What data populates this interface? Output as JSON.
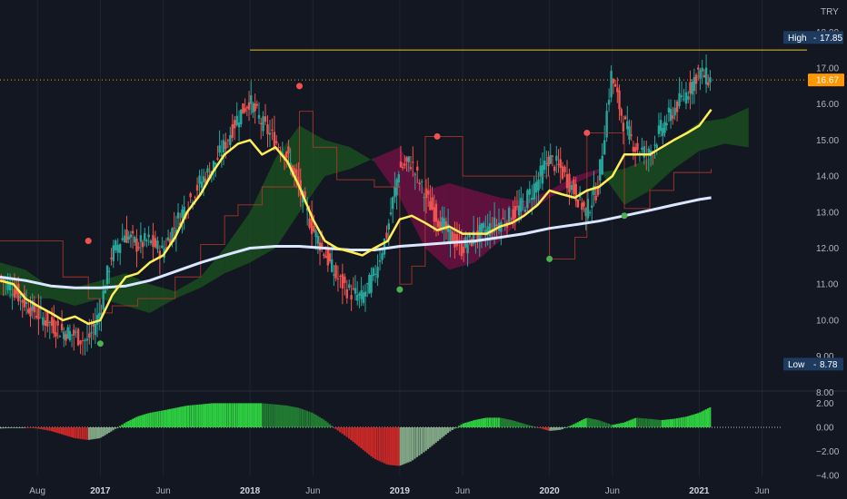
{
  "chart_data": {
    "type": "line",
    "currency": "TRY",
    "price_axis": {
      "ticks": [
        "18.00",
        "17.00",
        "16.00",
        "15.00",
        "14.00",
        "13.00",
        "12.00",
        "11.00",
        "10.00",
        "9.00",
        "8.00"
      ],
      "tick_values": [
        18,
        17,
        16,
        15,
        14,
        13,
        12,
        11,
        10,
        9,
        8
      ]
    },
    "oscillator_axis": {
      "ticks": [
        "2.00",
        "0.00",
        "−2.00",
        "−4.00"
      ],
      "tick_values": [
        2,
        0,
        -2,
        -4
      ]
    },
    "x_axis": {
      "labels": [
        {
          "text": "Aug",
          "t": 2016.58,
          "bold": false
        },
        {
          "text": "2017",
          "t": 2017.0,
          "bold": true
        },
        {
          "text": "Jun",
          "t": 2017.42,
          "bold": false
        },
        {
          "text": "2018",
          "t": 2018.0,
          "bold": true
        },
        {
          "text": "Jun",
          "t": 2018.42,
          "bold": false
        },
        {
          "text": "2019",
          "t": 2019.0,
          "bold": true
        },
        {
          "text": "Jun",
          "t": 2019.42,
          "bold": false
        },
        {
          "text": "2020",
          "t": 2020.0,
          "bold": true
        },
        {
          "text": "Jun",
          "t": 2020.42,
          "bold": false
        },
        {
          "text": "2021",
          "t": 2021.0,
          "bold": true
        },
        {
          "text": "Jun",
          "t": 2021.42,
          "bold": false
        }
      ]
    },
    "badges": {
      "high": {
        "label": "High",
        "value": "17.85",
        "price": 17.85
      },
      "last": {
        "value": "16.67",
        "price": 16.67
      },
      "low": {
        "label": "Low",
        "value": "8.78",
        "price": 8.78
      }
    },
    "high_line_level": 17.5,
    "colors": {
      "background": "#131722",
      "up": "#26a69a",
      "down": "#ef5350",
      "ma_fast": "#ffee58",
      "ma_slow": "#dbe7ff",
      "cloud_bull": "#1b5e20",
      "cloud_bear": "#880e4f",
      "hist_pos": "#2ecc40",
      "hist_neg": "#c62828",
      "last_price": "#ff9800",
      "badge": "#1e3a5f",
      "stop_dot_down": "#ef5350",
      "stop_dot_up": "#4caf50"
    },
    "price_series": [
      [
        2016.33,
        11.2
      ],
      [
        2016.42,
        10.9
      ],
      [
        2016.5,
        10.5
      ],
      [
        2016.58,
        10.2
      ],
      [
        2016.67,
        9.9
      ],
      [
        2016.75,
        9.7
      ],
      [
        2016.83,
        9.6
      ],
      [
        2016.92,
        9.4
      ],
      [
        2017.0,
        10.2
      ],
      [
        2017.08,
        11.8
      ],
      [
        2017.17,
        12.4
      ],
      [
        2017.25,
        12.1
      ],
      [
        2017.33,
        12.2
      ],
      [
        2017.42,
        11.9
      ],
      [
        2017.5,
        12.6
      ],
      [
        2017.58,
        13.2
      ],
      [
        2017.67,
        13.8
      ],
      [
        2017.75,
        14.2
      ],
      [
        2017.83,
        14.8
      ],
      [
        2017.92,
        15.6
      ],
      [
        2018.0,
        16.1
      ],
      [
        2018.08,
        15.5
      ],
      [
        2018.17,
        15.0
      ],
      [
        2018.25,
        14.6
      ],
      [
        2018.33,
        13.7
      ],
      [
        2018.42,
        12.6
      ],
      [
        2018.5,
        11.9
      ],
      [
        2018.58,
        11.2
      ],
      [
        2018.67,
        10.8
      ],
      [
        2018.75,
        10.6
      ],
      [
        2018.83,
        11.2
      ],
      [
        2018.92,
        12.4
      ],
      [
        2019.0,
        14.2
      ],
      [
        2019.08,
        14.4
      ],
      [
        2019.17,
        13.5
      ],
      [
        2019.25,
        12.9
      ],
      [
        2019.33,
        12.4
      ],
      [
        2019.42,
        12.0
      ],
      [
        2019.5,
        12.3
      ],
      [
        2019.58,
        12.5
      ],
      [
        2019.67,
        12.7
      ],
      [
        2019.75,
        12.9
      ],
      [
        2019.83,
        13.2
      ],
      [
        2019.92,
        13.8
      ],
      [
        2020.0,
        14.5
      ],
      [
        2020.08,
        14.2
      ],
      [
        2020.17,
        13.6
      ],
      [
        2020.25,
        13.0
      ],
      [
        2020.33,
        13.7
      ],
      [
        2020.42,
        16.8
      ],
      [
        2020.5,
        15.5
      ],
      [
        2020.58,
        14.8
      ],
      [
        2020.67,
        14.6
      ],
      [
        2020.75,
        15.3
      ],
      [
        2020.83,
        15.8
      ],
      [
        2020.92,
        16.3
      ],
      [
        2021.0,
        16.9
      ],
      [
        2021.08,
        16.67
      ]
    ],
    "ma_fast": [
      [
        2016.33,
        11.1
      ],
      [
        2016.42,
        11.0
      ],
      [
        2016.5,
        10.6
      ],
      [
        2016.58,
        10.4
      ],
      [
        2016.67,
        10.2
      ],
      [
        2016.75,
        10.0
      ],
      [
        2016.83,
        10.1
      ],
      [
        2016.92,
        9.9
      ],
      [
        2017.0,
        10.0
      ],
      [
        2017.08,
        10.7
      ],
      [
        2017.17,
        11.2
      ],
      [
        2017.25,
        11.3
      ],
      [
        2017.33,
        11.6
      ],
      [
        2017.42,
        11.8
      ],
      [
        2017.5,
        12.3
      ],
      [
        2017.58,
        13.0
      ],
      [
        2017.67,
        13.5
      ],
      [
        2017.75,
        14.1
      ],
      [
        2017.83,
        14.6
      ],
      [
        2017.92,
        14.9
      ],
      [
        2018.0,
        15.0
      ],
      [
        2018.08,
        14.6
      ],
      [
        2018.17,
        14.8
      ],
      [
        2018.25,
        14.4
      ],
      [
        2018.33,
        13.7
      ],
      [
        2018.42,
        12.8
      ],
      [
        2018.5,
        12.2
      ],
      [
        2018.58,
        12.0
      ],
      [
        2018.67,
        11.9
      ],
      [
        2018.75,
        11.8
      ],
      [
        2018.83,
        12.0
      ],
      [
        2018.92,
        12.2
      ],
      [
        2019.0,
        12.8
      ],
      [
        2019.08,
        12.9
      ],
      [
        2019.17,
        12.7
      ],
      [
        2019.25,
        12.5
      ],
      [
        2019.33,
        12.6
      ],
      [
        2019.42,
        12.4
      ],
      [
        2019.5,
        12.4
      ],
      [
        2019.58,
        12.4
      ],
      [
        2019.67,
        12.6
      ],
      [
        2019.75,
        12.7
      ],
      [
        2019.83,
        12.9
      ],
      [
        2019.92,
        13.2
      ],
      [
        2020.0,
        13.6
      ],
      [
        2020.08,
        13.5
      ],
      [
        2020.17,
        13.4
      ],
      [
        2020.25,
        13.6
      ],
      [
        2020.33,
        13.7
      ],
      [
        2020.42,
        14.0
      ],
      [
        2020.5,
        14.6
      ],
      [
        2020.58,
        14.6
      ],
      [
        2020.67,
        14.6
      ],
      [
        2020.75,
        14.8
      ],
      [
        2020.83,
        15.0
      ],
      [
        2020.92,
        15.2
      ],
      [
        2021.0,
        15.4
      ],
      [
        2021.08,
        15.85
      ]
    ],
    "ma_slow": [
      [
        2016.33,
        11.2
      ],
      [
        2016.5,
        11.1
      ],
      [
        2016.67,
        10.95
      ],
      [
        2016.83,
        10.9
      ],
      [
        2017.0,
        10.9
      ],
      [
        2017.17,
        10.95
      ],
      [
        2017.33,
        11.1
      ],
      [
        2017.5,
        11.35
      ],
      [
        2017.67,
        11.6
      ],
      [
        2017.83,
        11.8
      ],
      [
        2018.0,
        12.0
      ],
      [
        2018.17,
        12.05
      ],
      [
        2018.33,
        12.05
      ],
      [
        2018.5,
        12.0
      ],
      [
        2018.67,
        11.95
      ],
      [
        2018.83,
        11.95
      ],
      [
        2019.0,
        12.05
      ],
      [
        2019.17,
        12.1
      ],
      [
        2019.33,
        12.15
      ],
      [
        2019.5,
        12.2
      ],
      [
        2019.67,
        12.3
      ],
      [
        2019.83,
        12.4
      ],
      [
        2020.0,
        12.55
      ],
      [
        2020.17,
        12.65
      ],
      [
        2020.33,
        12.75
      ],
      [
        2020.5,
        12.9
      ],
      [
        2020.67,
        13.05
      ],
      [
        2020.83,
        13.2
      ],
      [
        2021.0,
        13.35
      ],
      [
        2021.08,
        13.4
      ]
    ],
    "stop_line": [
      [
        2016.33,
        12.2
      ],
      [
        2016.58,
        12.2
      ],
      [
        2016.75,
        11.2
      ],
      [
        2016.92,
        10.6
      ],
      [
        2017.0,
        10.2
      ],
      [
        2017.08,
        10.4
      ],
      [
        2017.25,
        10.6
      ],
      [
        2017.5,
        11.2
      ],
      [
        2017.67,
        12.1
      ],
      [
        2017.83,
        12.9
      ],
      [
        2017.92,
        13.2
      ],
      [
        2018.08,
        13.7
      ],
      [
        2018.25,
        13.7
      ],
      [
        2018.33,
        15.8
      ],
      [
        2018.42,
        14.8
      ],
      [
        2018.58,
        13.9
      ],
      [
        2018.83,
        13.7
      ],
      [
        2019.0,
        11.0
      ],
      [
        2019.08,
        11.5
      ],
      [
        2019.17,
        15.1
      ],
      [
        2019.33,
        15.1
      ],
      [
        2019.42,
        14.0
      ],
      [
        2019.83,
        14.0
      ],
      [
        2020.0,
        11.7
      ],
      [
        2020.17,
        12.3
      ],
      [
        2020.25,
        15.2
      ],
      [
        2020.42,
        15.2
      ],
      [
        2020.5,
        13.1
      ],
      [
        2020.67,
        13.6
      ],
      [
        2020.83,
        14.1
      ],
      [
        2021.08,
        14.2
      ]
    ],
    "stop_dots": [
      {
        "t": 2016.92,
        "v": 12.2,
        "dir": "down"
      },
      {
        "t": 2017.0,
        "v": 9.35,
        "dir": "up"
      },
      {
        "t": 2018.33,
        "v": 16.5,
        "dir": "down"
      },
      {
        "t": 2019.0,
        "v": 10.85,
        "dir": "up"
      },
      {
        "t": 2019.25,
        "v": 15.1,
        "dir": "down"
      },
      {
        "t": 2020.0,
        "v": 11.7,
        "dir": "up"
      },
      {
        "t": 2020.25,
        "v": 15.2,
        "dir": "down"
      },
      {
        "t": 2020.5,
        "v": 12.9,
        "dir": "up"
      }
    ],
    "cloud_series": [
      [
        2016.33,
        11.6,
        10.7
      ],
      [
        2016.5,
        11.4,
        10.6
      ],
      [
        2016.67,
        10.9,
        10.6
      ],
      [
        2016.83,
        10.9,
        10.4
      ],
      [
        2017.0,
        11.1,
        10.6
      ],
      [
        2017.17,
        11.3,
        10.4
      ],
      [
        2017.33,
        11.0,
        10.2
      ],
      [
        2017.5,
        10.8,
        10.6
      ],
      [
        2017.67,
        11.2,
        10.9
      ],
      [
        2017.83,
        12.0,
        11.3
      ],
      [
        2018.0,
        13.0,
        11.6
      ],
      [
        2018.17,
        14.5,
        12.0
      ],
      [
        2018.33,
        15.4,
        13.0
      ],
      [
        2018.5,
        15.0,
        14.0
      ],
      [
        2018.67,
        14.8,
        14.2
      ],
      [
        2018.83,
        14.4,
        14.5
      ],
      [
        2019.0,
        13.4,
        14.8
      ],
      [
        2019.17,
        12.0,
        13.6
      ],
      [
        2019.33,
        11.4,
        13.8
      ],
      [
        2019.5,
        11.6,
        13.6
      ],
      [
        2019.67,
        12.2,
        13.4
      ],
      [
        2019.83,
        12.9,
        13.3
      ],
      [
        2020.0,
        13.4,
        13.6
      ],
      [
        2020.17,
        13.8,
        14.0
      ],
      [
        2020.33,
        14.1,
        14.2
      ],
      [
        2020.5,
        14.2,
        13.2
      ],
      [
        2020.67,
        14.5,
        13.6
      ],
      [
        2020.83,
        15.0,
        14.2
      ],
      [
        2021.0,
        15.5,
        14.7
      ],
      [
        2021.17,
        15.6,
        14.9
      ],
      [
        2021.33,
        15.9,
        14.8
      ]
    ],
    "oscillator_series": [
      [
        2016.33,
        -0.1
      ],
      [
        2016.42,
        -0.05
      ],
      [
        2016.5,
        0.0
      ],
      [
        2016.58,
        -0.1
      ],
      [
        2016.67,
        -0.3
      ],
      [
        2016.75,
        -0.6
      ],
      [
        2016.83,
        -0.9
      ],
      [
        2016.92,
        -1.05
      ],
      [
        2017.0,
        -0.9
      ],
      [
        2017.08,
        -0.3
      ],
      [
        2017.17,
        0.4
      ],
      [
        2017.25,
        0.9
      ],
      [
        2017.33,
        1.2
      ],
      [
        2017.42,
        1.4
      ],
      [
        2017.5,
        1.6
      ],
      [
        2017.58,
        1.8
      ],
      [
        2017.67,
        1.9
      ],
      [
        2017.75,
        2.0
      ],
      [
        2017.83,
        2.0
      ],
      [
        2017.92,
        2.0
      ],
      [
        2018.0,
        2.0
      ],
      [
        2018.08,
        2.0
      ],
      [
        2018.17,
        1.9
      ],
      [
        2018.25,
        1.8
      ],
      [
        2018.33,
        1.6
      ],
      [
        2018.42,
        1.2
      ],
      [
        2018.5,
        0.6
      ],
      [
        2018.58,
        -0.2
      ],
      [
        2018.67,
        -1.0
      ],
      [
        2018.75,
        -1.8
      ],
      [
        2018.83,
        -2.6
      ],
      [
        2018.92,
        -3.1
      ],
      [
        2019.0,
        -3.2
      ],
      [
        2019.08,
        -2.8
      ],
      [
        2019.17,
        -2.0
      ],
      [
        2019.25,
        -1.2
      ],
      [
        2019.33,
        -0.4
      ],
      [
        2019.42,
        0.3
      ],
      [
        2019.5,
        0.6
      ],
      [
        2019.58,
        0.8
      ],
      [
        2019.67,
        0.8
      ],
      [
        2019.75,
        0.6
      ],
      [
        2019.83,
        0.3
      ],
      [
        2019.92,
        0.0
      ],
      [
        2020.0,
        -0.3
      ],
      [
        2020.08,
        -0.2
      ],
      [
        2020.17,
        0.3
      ],
      [
        2020.25,
        0.8
      ],
      [
        2020.33,
        0.6
      ],
      [
        2020.42,
        0.2
      ],
      [
        2020.5,
        0.4
      ],
      [
        2020.58,
        0.8
      ],
      [
        2020.67,
        0.7
      ],
      [
        2020.75,
        0.6
      ],
      [
        2020.83,
        0.7
      ],
      [
        2020.92,
        0.9
      ],
      [
        2021.0,
        1.2
      ],
      [
        2021.08,
        1.7
      ]
    ]
  }
}
